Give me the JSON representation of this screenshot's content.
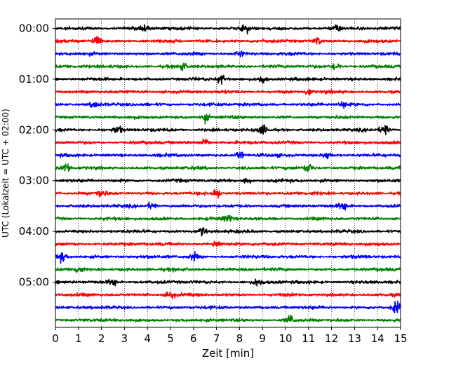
{
  "chart_data": {
    "type": "line",
    "subtype": "helicorder",
    "xlabel": "Zeit  [min]",
    "ylabel": "UTC (Lokalzeit = UTC + 02:00)",
    "xlim": [
      0,
      15
    ],
    "xticks": [
      "0",
      "1",
      "2",
      "3",
      "4",
      "5",
      "6",
      "7",
      "8",
      "9",
      "10",
      "11",
      "12",
      "13",
      "14",
      "15"
    ],
    "yticks": [
      "00:00",
      "01:00",
      "02:00",
      "03:00",
      "04:00",
      "05:00"
    ],
    "trace_interval_minutes": 15,
    "start_time": "00:00",
    "trace_count": 24,
    "trace_colors": [
      "#000000",
      "#ff0000",
      "#0000ff",
      "#008000"
    ],
    "grid": "vertical-dotted",
    "events": [
      {
        "trace": 0,
        "minute": 3.8,
        "amp": 0.9
      },
      {
        "trace": 0,
        "minute": 8.3,
        "amp": 1.0
      },
      {
        "trace": 0,
        "minute": 12.2,
        "amp": 0.8
      },
      {
        "trace": 1,
        "minute": 1.8,
        "amp": 1.3
      },
      {
        "trace": 1,
        "minute": 11.4,
        "amp": 0.8
      },
      {
        "trace": 2,
        "minute": 8.0,
        "amp": 0.7
      },
      {
        "trace": 3,
        "minute": 5.5,
        "amp": 0.8
      },
      {
        "trace": 3,
        "minute": 12.2,
        "amp": 0.9
      },
      {
        "trace": 4,
        "minute": 7.2,
        "amp": 1.0
      },
      {
        "trace": 4,
        "minute": 9.0,
        "amp": 0.9
      },
      {
        "trace": 5,
        "minute": 11.0,
        "amp": 0.7
      },
      {
        "trace": 6,
        "minute": 1.7,
        "amp": 0.8
      },
      {
        "trace": 6,
        "minute": 12.5,
        "amp": 0.7
      },
      {
        "trace": 7,
        "minute": 6.5,
        "amp": 1.0
      },
      {
        "trace": 8,
        "minute": 2.7,
        "amp": 0.9
      },
      {
        "trace": 8,
        "minute": 9.0,
        "amp": 0.9
      },
      {
        "trace": 8,
        "minute": 14.3,
        "amp": 1.3
      },
      {
        "trace": 9,
        "minute": 6.5,
        "amp": 1.0
      },
      {
        "trace": 10,
        "minute": 8.0,
        "amp": 1.1
      },
      {
        "trace": 10,
        "minute": 11.8,
        "amp": 0.9
      },
      {
        "trace": 11,
        "minute": 0.5,
        "amp": 1.1
      },
      {
        "trace": 11,
        "minute": 11.0,
        "amp": 0.9
      },
      {
        "trace": 12,
        "minute": 8.3,
        "amp": 0.9
      },
      {
        "trace": 13,
        "minute": 2.0,
        "amp": 0.9
      },
      {
        "trace": 13,
        "minute": 7.0,
        "amp": 1.0
      },
      {
        "trace": 14,
        "minute": 4.2,
        "amp": 0.9
      },
      {
        "trace": 14,
        "minute": 12.5,
        "amp": 1.0
      },
      {
        "trace": 15,
        "minute": 7.5,
        "amp": 0.9
      },
      {
        "trace": 16,
        "minute": 6.4,
        "amp": 1.0
      },
      {
        "trace": 17,
        "minute": 7.0,
        "amp": 0.9
      },
      {
        "trace": 18,
        "minute": 0.3,
        "amp": 1.0
      },
      {
        "trace": 18,
        "minute": 6.0,
        "amp": 0.8
      },
      {
        "trace": 19,
        "minute": 1.0,
        "amp": 0.8
      },
      {
        "trace": 20,
        "minute": 2.5,
        "amp": 1.0
      },
      {
        "trace": 20,
        "minute": 8.8,
        "amp": 0.8
      },
      {
        "trace": 21,
        "minute": 5.0,
        "amp": 0.8
      },
      {
        "trace": 22,
        "minute": 14.8,
        "amp": 1.5
      },
      {
        "trace": 23,
        "minute": 10.2,
        "amp": 1.0
      }
    ]
  }
}
